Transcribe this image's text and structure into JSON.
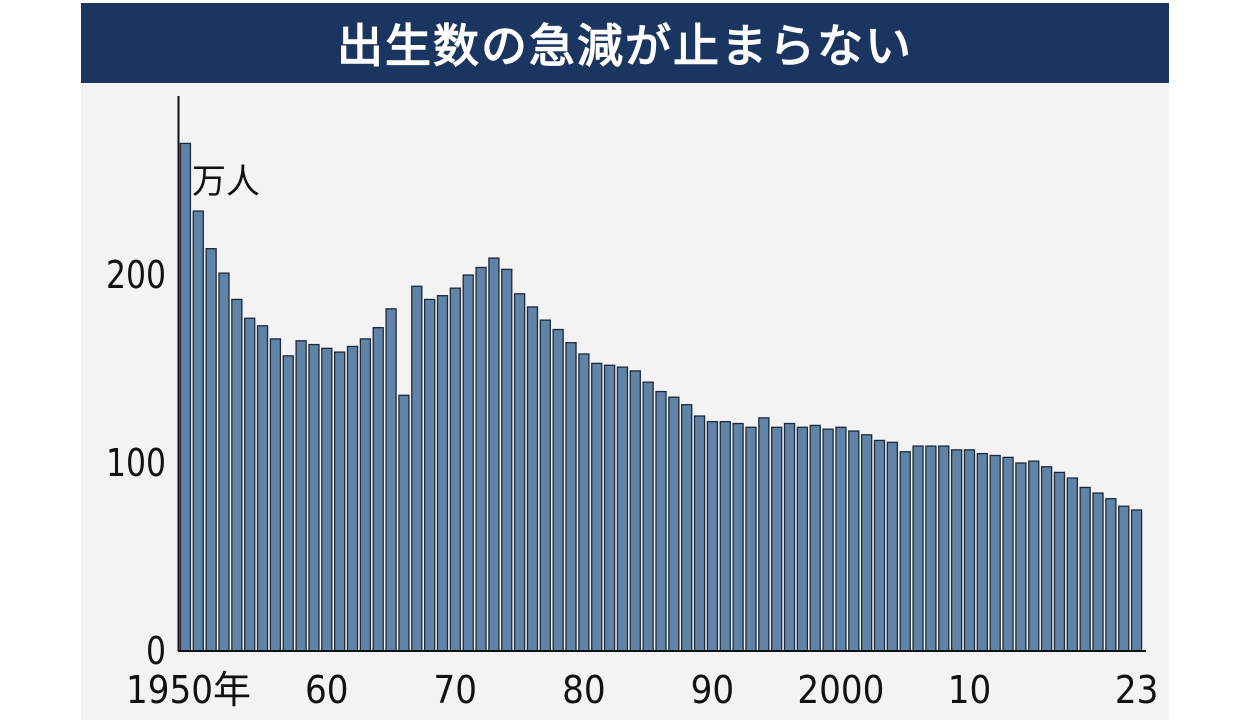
{
  "chart_data": {
    "type": "bar",
    "title": "出生数の急減が止まらない",
    "unit_label": "万人",
    "xlabel": "",
    "ylabel": "",
    "ylim": [
      0,
      285
    ],
    "yticks": [
      0,
      100,
      200
    ],
    "x_tick_labels": [
      {
        "year": 1950,
        "label": "1950年"
      },
      {
        "year": 1960,
        "label": "60"
      },
      {
        "year": 1970,
        "label": "70"
      },
      {
        "year": 1980,
        "label": "80"
      },
      {
        "year": 1990,
        "label": "90"
      },
      {
        "year": 2000,
        "label": "2000"
      },
      {
        "year": 2010,
        "label": "10"
      },
      {
        "year": 2023,
        "label": "23"
      }
    ],
    "grid": false,
    "categories": [
      1949,
      1950,
      1951,
      1952,
      1953,
      1954,
      1955,
      1956,
      1957,
      1958,
      1959,
      1960,
      1961,
      1962,
      1963,
      1964,
      1965,
      1966,
      1967,
      1968,
      1969,
      1970,
      1971,
      1972,
      1973,
      1974,
      1975,
      1976,
      1977,
      1978,
      1979,
      1980,
      1981,
      1982,
      1983,
      1984,
      1985,
      1986,
      1987,
      1988,
      1989,
      1990,
      1991,
      1992,
      1993,
      1994,
      1995,
      1996,
      1997,
      1998,
      1999,
      2000,
      2001,
      2002,
      2003,
      2004,
      2005,
      2006,
      2007,
      2008,
      2009,
      2010,
      2011,
      2012,
      2013,
      2014,
      2015,
      2016,
      2017,
      2018,
      2019,
      2020,
      2021,
      2022,
      2023
    ],
    "values": [
      270,
      234,
      214,
      201,
      187,
      177,
      173,
      166,
      157,
      165,
      163,
      161,
      159,
      162,
      166,
      172,
      182,
      136,
      194,
      187,
      189,
      193,
      200,
      204,
      209,
      203,
      190,
      183,
      176,
      171,
      164,
      158,
      153,
      152,
      151,
      149,
      143,
      138,
      135,
      131,
      125,
      122,
      122,
      121,
      119,
      124,
      119,
      121,
      119,
      120,
      118,
      119,
      117,
      115,
      112,
      111,
      106,
      109,
      109,
      109,
      107,
      107,
      105,
      104,
      103,
      100,
      101,
      98,
      95,
      92,
      87,
      84,
      81,
      77,
      75
    ],
    "colors": {
      "bar_fill": "#5f84a8",
      "bar_stroke": "#1e2a38",
      "title_bg": "#193560",
      "plot_bg": "#f3f3f3"
    }
  }
}
